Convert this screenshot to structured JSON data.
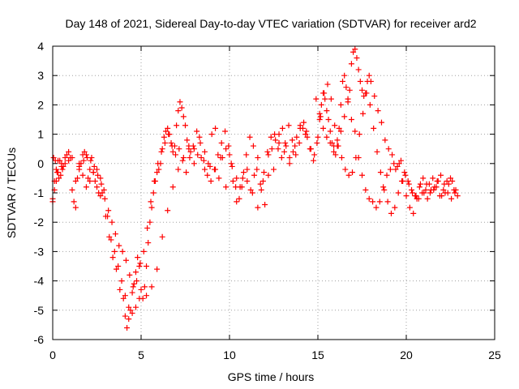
{
  "chart_data": {
    "type": "scatter",
    "title": "Day 148 of 2021, Sidereal Day-to-day VTEC variation (SDTVAR) for receiver ard2",
    "xlabel": "GPS time / hours",
    "ylabel": "SDTVAR / TECUs",
    "xlim": [
      0,
      25
    ],
    "ylim": [
      -6,
      4
    ],
    "xticks": [
      0,
      5,
      10,
      15,
      20,
      25
    ],
    "yticks": [
      -6,
      -5,
      -4,
      -3,
      -2,
      -1,
      0,
      1,
      2,
      3,
      4
    ],
    "grid": true,
    "marker": "+",
    "color": "#ff0000",
    "series": [
      {
        "name": "SDTVAR",
        "x": [
          0.0,
          0.1,
          0.2,
          0.3,
          0.4,
          0.5,
          0.6,
          0.8,
          1.0,
          1.2,
          1.3,
          1.4,
          1.5,
          1.6,
          1.7,
          1.8,
          1.9,
          2.0,
          2.1,
          2.2,
          2.3,
          2.4,
          2.5,
          2.6,
          2.7,
          2.8,
          3.0,
          3.2,
          3.4,
          3.6,
          3.8,
          4.0,
          4.1,
          4.2,
          4.3,
          4.4,
          4.5,
          4.6,
          4.7,
          4.8,
          4.9,
          5.0,
          5.1,
          5.2,
          5.3,
          5.4,
          5.5,
          5.6,
          5.7,
          5.8,
          5.9,
          6.0,
          6.1,
          6.2,
          6.3,
          6.4,
          6.5,
          6.6,
          6.7,
          6.8,
          6.9,
          7.0,
          7.1,
          7.2,
          7.3,
          7.4,
          7.5,
          7.6,
          7.7,
          7.8,
          8.0,
          8.2,
          8.4,
          8.6,
          8.8,
          9.0,
          9.2,
          9.4,
          9.6,
          9.8,
          10.0,
          10.2,
          10.4,
          10.6,
          10.8,
          11.0,
          11.2,
          11.4,
          11.6,
          11.8,
          12.0,
          12.2,
          12.4,
          12.6,
          12.8,
          13.0,
          13.2,
          13.4,
          13.6,
          13.8,
          14.0,
          14.2,
          14.4,
          14.6,
          14.8,
          15.0,
          15.1,
          15.2,
          15.3,
          15.4,
          15.5,
          15.6,
          15.7,
          15.8,
          15.9,
          16.0,
          16.1,
          16.2,
          16.3,
          16.4,
          16.5,
          16.6,
          16.7,
          16.8,
          16.9,
          17.0,
          17.1,
          17.2,
          17.3,
          17.4,
          17.5,
          17.6,
          17.7,
          17.8,
          17.9,
          18.0,
          18.2,
          18.4,
          18.6,
          18.8,
          19.0,
          19.2,
          19.4,
          19.6,
          19.8,
          20.0,
          20.2,
          20.4,
          20.6,
          20.8,
          21.0,
          21.2,
          21.4,
          21.6,
          21.8,
          22.0,
          22.2,
          22.4,
          22.6,
          22.8,
          22.9,
          0.0,
          0.1,
          0.2,
          0.3,
          0.5,
          0.7,
          0.9,
          1.1,
          1.5,
          1.7,
          1.9,
          2.1,
          2.3,
          2.5,
          2.7,
          2.9,
          3.1,
          3.3,
          3.5,
          3.7,
          3.9,
          4.1,
          4.3,
          4.5,
          4.7,
          4.9,
          5.3,
          5.6,
          5.9,
          6.2,
          6.5,
          6.8,
          7.1,
          7.4,
          7.7,
          8.0,
          8.3,
          8.6,
          8.9,
          9.2,
          9.5,
          9.8,
          10.1,
          10.4,
          10.7,
          11.0,
          11.3,
          11.6,
          11.9,
          12.2,
          12.5,
          12.8,
          13.1,
          13.4,
          13.7,
          14.0,
          14.3,
          14.6,
          14.9,
          15.1,
          15.3,
          15.5,
          15.7,
          15.9,
          16.1,
          16.3,
          16.5,
          16.7,
          16.9,
          17.1,
          17.3,
          17.5,
          17.7,
          17.9,
          18.1,
          18.3,
          18.5,
          18.7,
          18.9,
          19.1,
          19.3,
          19.5,
          19.7,
          19.9,
          20.1,
          20.3,
          20.5,
          20.7,
          20.9,
          21.1,
          21.3,
          21.5,
          21.7,
          21.9,
          22.1,
          22.3,
          22.5,
          22.7,
          0.05,
          0.15,
          0.25,
          0.35,
          0.45,
          0.55,
          0.7,
          0.9,
          1.1,
          1.3,
          1.5,
          1.75,
          1.95,
          2.15,
          2.35,
          2.55,
          2.75,
          2.95,
          3.15,
          3.35,
          3.55,
          3.75,
          3.95,
          4.15,
          4.35,
          4.55,
          4.75,
          4.95,
          5.15,
          5.35,
          5.55,
          5.75,
          5.95,
          6.15,
          6.35,
          6.55,
          6.75,
          6.95,
          7.15,
          7.35,
          7.55,
          7.75,
          7.95,
          8.15,
          8.35,
          8.55,
          8.75,
          8.95,
          9.15,
          9.35,
          9.55,
          9.75,
          9.95,
          10.15,
          10.35,
          10.55,
          10.75,
          10.95,
          11.15,
          11.35,
          11.55,
          11.75,
          11.95,
          12.15,
          12.35,
          12.55,
          12.75,
          12.95,
          13.15,
          13.35,
          13.55,
          13.75,
          13.95,
          14.15,
          14.35,
          14.55,
          14.75,
          14.95,
          15.15,
          15.35,
          15.55,
          15.75,
          15.95,
          16.15,
          16.35,
          16.55,
          16.75,
          16.95,
          17.15,
          17.35,
          17.55,
          17.75,
          17.95,
          18.15,
          18.35,
          18.55,
          18.75,
          18.95,
          19.15,
          19.35,
          19.55,
          19.75,
          19.95,
          20.15,
          20.35,
          20.55,
          20.75,
          20.95,
          21.15,
          21.35,
          21.55,
          21.75,
          21.95,
          22.15,
          22.35,
          22.55,
          22.75
        ],
        "y": [
          -1.2,
          -0.6,
          -0.2,
          0.1,
          0.1,
          0.0,
          -0.1,
          0.3,
          0.2,
          -1.3,
          -1.5,
          -0.5,
          -0.2,
          0.0,
          0.3,
          0.4,
          0.3,
          -0.5,
          -0.2,
          0.2,
          -0.3,
          -0.6,
          -0.8,
          -1.0,
          -1.1,
          -1.0,
          -1.8,
          -2.5,
          -3.2,
          -3.6,
          -4.3,
          -4.6,
          -5.2,
          -5.6,
          -5.3,
          -5.0,
          -4.4,
          -4.1,
          -3.7,
          -3.2,
          -3.5,
          -4.3,
          -4.6,
          -4.2,
          -3.5,
          -2.7,
          -2.0,
          -1.5,
          -1.0,
          -0.6,
          -0.3,
          -0.2,
          0.0,
          0.5,
          0.9,
          1.1,
          1.2,
          1.0,
          0.7,
          0.4,
          0.6,
          1.3,
          1.8,
          2.1,
          1.9,
          1.6,
          1.3,
          0.8,
          0.5,
          0.4,
          0.0,
          0.3,
          0.2,
          -0.2,
          0.0,
          1.0,
          -0.2,
          -0.5,
          0.2,
          0.5,
          0.3,
          -0.6,
          -1.3,
          -0.8,
          -0.3,
          -0.6,
          -0.9,
          -0.4,
          0.2,
          -0.9,
          -1.4,
          -0.4,
          0.5,
          0.8,
          1.0,
          1.2,
          0.6,
          0.2,
          0.4,
          0.9,
          1.2,
          1.4,
          0.9,
          0.5,
          0.3,
          0.9,
          1.5,
          2.0,
          2.4,
          2.2,
          1.8,
          1.5,
          1.1,
          0.7,
          0.4,
          0.3,
          0.6,
          1.2,
          2.0,
          2.8,
          3.0,
          2.6,
          2.1,
          2.5,
          3.4,
          3.8,
          3.9,
          3.6,
          3.2,
          2.8,
          2.5,
          2.3,
          2.4,
          2.8,
          3.0,
          2.8,
          2.3,
          1.8,
          1.4,
          0.8,
          0.5,
          0.3,
          -0.2,
          0.0,
          -0.6,
          -1.1,
          -1.5,
          -1.7,
          -1.2,
          -0.7,
          -1.0,
          -1.2,
          -0.9,
          -0.8,
          -0.6,
          -1.1,
          -1.0,
          -0.7,
          -0.6,
          -0.9,
          -1.1,
          -1.3,
          -0.9,
          -0.6,
          -0.3,
          -0.1,
          0.0,
          0.1,
          0.2,
          0.0,
          -0.4,
          -0.8,
          -0.6,
          -0.3,
          -0.2,
          -0.5,
          -0.9,
          -1.8,
          -2.6,
          -3.0,
          -3.5,
          -4.0,
          -4.5,
          -4.9,
          -5.1,
          -4.9,
          -4.6,
          -4.5,
          -4.2,
          -3.6,
          -2.5,
          -1.6,
          -0.8,
          -0.2,
          0.2,
          0.6,
          0.5,
          0.9,
          0.4,
          -0.1,
          1.2,
          0.2,
          -0.8,
          0.0,
          -0.5,
          -0.8,
          -0.2,
          -1.0,
          -1.5,
          -0.6,
          0.3,
          -0.2,
          0.7,
          0.4,
          0.0,
          0.6,
          1.3,
          1.0,
          0.5,
          2.2,
          1.7,
          1.2,
          0.9,
          0.7,
          0.6,
          0.8,
          1.1,
          1.6,
          2.2,
          1.5,
          1.1,
          0.2,
          -0.4,
          -0.9,
          -1.2,
          -1.3,
          -1.5,
          -1.3,
          -0.8,
          -0.4,
          -0.2,
          0.0,
          -0.1,
          0.1,
          -0.3,
          -0.6,
          -0.9,
          -1.1,
          -1.2,
          -1.0,
          -0.9,
          -0.7,
          -0.5,
          -0.8,
          -1.1,
          -0.9,
          -0.6,
          -0.5,
          -0.9,
          0.2,
          0.1,
          -0.3,
          -0.5,
          -0.4,
          -0.2,
          0.2,
          0.4,
          -0.9,
          -0.6,
          -0.1,
          0.1,
          0.2,
          0.1,
          -0.1,
          -0.4,
          -0.7,
          -1.2,
          -1.6,
          -2.0,
          -2.4,
          -2.8,
          -3.0,
          -3.3,
          -3.8,
          -4.2,
          -4.0,
          -3.4,
          -3.0,
          -2.2,
          -1.3,
          -0.6,
          0.0,
          0.4,
          0.7,
          1.0,
          0.6,
          0.3,
          0.5,
          0.1,
          -0.3,
          0.2,
          0.6,
          1.1,
          0.7,
          0.1,
          -0.4,
          -0.6,
          -0.2,
          0.3,
          0.7,
          1.1,
          0.6,
          -0.1,
          -0.8,
          -1.2,
          -0.5,
          0.3,
          0.9,
          0.6,
          -0.2,
          -0.7,
          -0.3,
          0.4,
          0.9,
          1.0,
          0.5,
          0.2,
          0.7,
          1.3,
          0.8,
          0.3,
          0.7,
          1.2,
          1.1,
          0.5,
          0.1,
          0.7,
          1.6,
          2.4,
          2.7,
          2.2,
          1.3,
          0.6,
          0.2,
          -0.2,
          -0.4,
          -0.3,
          0.2,
          1.0,
          1.7,
          2.4,
          2.0,
          1.2,
          0.4,
          -0.3,
          -0.9,
          -1.3,
          -1.7,
          -1.5,
          -1.0,
          -0.6,
          -0.4,
          -0.7,
          -1.0,
          -1.1,
          -0.8,
          -0.5,
          -0.7,
          -1.0,
          -0.9,
          -0.6,
          -0.4,
          -0.7,
          -1.0,
          -1.2,
          -1.0
        ]
      }
    ]
  }
}
